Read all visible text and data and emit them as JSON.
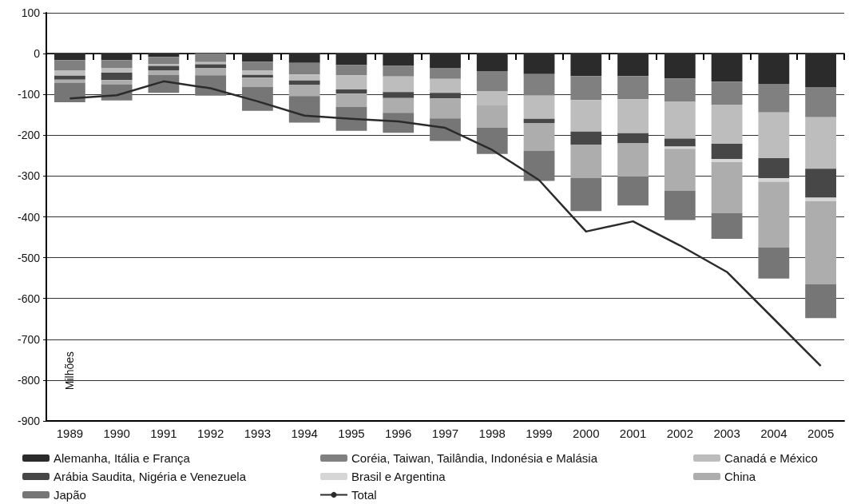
{
  "chart_data": {
    "type": "bar",
    "stacked": true,
    "ylabel": "Milhões",
    "categories": [
      "1989",
      "1990",
      "1991",
      "1992",
      "1993",
      "1994",
      "1995",
      "1996",
      "1997",
      "1998",
      "1999",
      "2000",
      "2001",
      "2002",
      "2003",
      "2004",
      "2005"
    ],
    "series": [
      {
        "name": "Alemanha, Itália e França",
        "color": "#2b2b2b",
        "values": [
          -16,
          -16,
          -8,
          null,
          -20,
          -23,
          -28,
          -30,
          -35,
          -43,
          -50,
          -55,
          -55,
          -61,
          -69,
          -74,
          -82
        ]
      },
      {
        "name": "Coréia, Taiwan, Tailândia, Indonésia e Malásia",
        "color": "#808080",
        "values": [
          -25,
          -19,
          -17,
          -21,
          -22,
          -28,
          -25,
          -26,
          -27,
          -49,
          -53,
          -59,
          -57,
          -57,
          -56,
          -70,
          -74
        ]
      },
      {
        "name": "Canadá e México",
        "color": "#bdbdbd",
        "values": [
          -13,
          -12,
          -5,
          -5,
          -10,
          -15,
          -35,
          -38,
          -34,
          -35,
          -57,
          -77,
          -83,
          -90,
          -96,
          -112,
          -126
        ]
      },
      {
        "name": "Arábia Saudita, Nigéria e Venezuela",
        "color": "#474747",
        "values": [
          -10,
          -18,
          -11,
          -9,
          -7,
          -10,
          -10,
          -15,
          -14,
          null,
          -10,
          -32,
          -25,
          -20,
          -37,
          -49,
          -71
        ]
      },
      {
        "name": "Brasil e Argentina",
        "color": "#d6d6d6",
        "values": [
          null,
          null,
          null,
          null,
          null,
          null,
          null,
          null,
          null,
          null,
          null,
          null,
          null,
          -5,
          -8,
          -9,
          -9
        ]
      },
      {
        "name": "China",
        "color": "#adadad",
        "values": [
          -7,
          -10,
          -11,
          -18,
          -23,
          -28,
          -33,
          -36,
          -49,
          -55,
          -68,
          -82,
          -81,
          -103,
          -125,
          -161,
          -203
        ]
      },
      {
        "name": "Japão",
        "color": "#767676",
        "values": [
          -48,
          -40,
          -44,
          -50,
          -58,
          -65,
          -58,
          -49,
          -55,
          -64,
          -74,
          -81,
          -71,
          -72,
          -63,
          -76,
          -83
        ]
      },
      {
        "name": "Total",
        "type": "line",
        "color": "#2b2b2b",
        "values": [
          -110,
          -102,
          -68,
          -85,
          -117,
          -152,
          -160,
          -166,
          -182,
          -236,
          -310,
          -436,
          -411,
          -470,
          -535,
          -650,
          -765
        ]
      }
    ],
    "ylim": [
      -900,
      100
    ],
    "yticks": [
      -900,
      -800,
      -700,
      -600,
      -500,
      -400,
      -300,
      -200,
      -100,
      0,
      100
    ],
    "grid": "y",
    "legend": "bottom",
    "marker": "none",
    "line_style": "solid"
  }
}
